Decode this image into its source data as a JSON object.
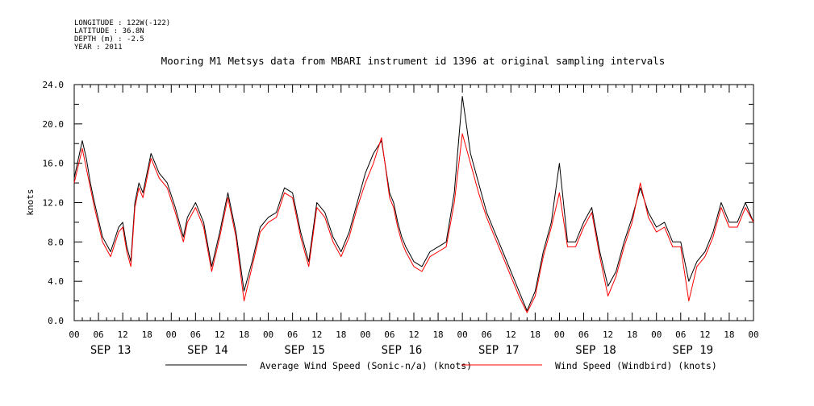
{
  "header": {
    "longitude": "LONGITUDE : 122W(-122)",
    "latitude": "LATITUDE : 36.8N",
    "depth": "DEPTH (m) : -2.5",
    "year": "YEAR : 2011"
  },
  "chart_data": {
    "type": "line",
    "title": "Mooring M1 Metsys data from MBARI instrument id 1396 at original sampling intervals",
    "xlabel": "",
    "ylabel": "knots",
    "ylim": [
      0,
      24
    ],
    "y_ticks": [
      "0.0",
      "4.0",
      "8.0",
      "12.0",
      "16.0",
      "20.0",
      "24.0"
    ],
    "x_hour_labels": [
      "00",
      "06",
      "12",
      "18",
      "00",
      "06",
      "12",
      "18",
      "00",
      "06",
      "12",
      "18",
      "00",
      "06",
      "12",
      "18",
      "00",
      "06",
      "12",
      "18",
      "00",
      "06",
      "12",
      "18",
      "00",
      "06",
      "12",
      "18",
      "00"
    ],
    "x_day_labels": [
      "SEP 13",
      "SEP 14",
      "SEP 15",
      "SEP 16",
      "SEP 17",
      "SEP 18",
      "SEP 19"
    ],
    "grid": false,
    "legend": "bottom",
    "x_units": "hours since 2011-09-13 00:00",
    "series": [
      {
        "name": "Average Wind Speed (Sonic-n/a) (knots)",
        "color": "#000000",
        "x": [
          0,
          2,
          3,
          4,
          5,
          7,
          9,
          11,
          12,
          13,
          14,
          15,
          16,
          17,
          19,
          21,
          23,
          25,
          27,
          28,
          30,
          32,
          34,
          36,
          38,
          40,
          42,
          44,
          46,
          48,
          50,
          52,
          54,
          56,
          58,
          60,
          62,
          64,
          66,
          68,
          70,
          72,
          74,
          76,
          78,
          79,
          80,
          81,
          82,
          84,
          86,
          88,
          90,
          92,
          94,
          96,
          98,
          100,
          102,
          104,
          106,
          108,
          110,
          112,
          114,
          116,
          118,
          120,
          122,
          124,
          126,
          128,
          130,
          132,
          134,
          136,
          138,
          140,
          142,
          144,
          146,
          148,
          150,
          152,
          154,
          156,
          158,
          160,
          162,
          164,
          166,
          168
        ],
        "y": [
          14.5,
          18.3,
          16.5,
          14,
          12,
          8.5,
          7,
          9.5,
          10,
          7.5,
          6,
          12,
          14,
          13,
          17,
          15,
          14,
          11.5,
          8.5,
          10.5,
          12,
          10,
          5.5,
          9,
          13,
          9,
          3,
          6,
          9.5,
          10.5,
          11,
          13.5,
          13,
          9,
          6,
          12,
          11,
          8.5,
          7,
          9,
          12,
          15,
          17,
          18.3,
          13,
          12,
          10,
          8.5,
          7.5,
          6,
          5.5,
          7,
          7.5,
          8,
          13,
          22.8,
          17,
          14,
          11,
          9,
          7,
          5,
          3,
          1,
          3,
          7,
          10,
          16,
          8,
          8,
          10,
          11.5,
          7,
          3.5,
          5,
          8,
          10.5,
          13.5,
          11,
          9.5,
          10,
          8,
          8,
          4,
          6,
          7,
          9,
          12,
          10,
          10,
          12,
          10
        ]
      },
      {
        "name": "Wind Speed (Windbird) (knots)",
        "color": "#ff0000",
        "x": [
          0,
          2,
          3,
          4,
          5,
          7,
          9,
          11,
          12,
          13,
          14,
          15,
          16,
          17,
          19,
          21,
          23,
          25,
          27,
          28,
          30,
          32,
          34,
          36,
          38,
          40,
          42,
          44,
          46,
          48,
          50,
          52,
          54,
          56,
          58,
          60,
          62,
          64,
          66,
          68,
          70,
          72,
          74,
          76,
          78,
          79,
          80,
          81,
          82,
          84,
          86,
          88,
          90,
          92,
          94,
          96,
          98,
          100,
          102,
          104,
          106,
          108,
          110,
          112,
          114,
          116,
          118,
          120,
          122,
          124,
          126,
          128,
          130,
          132,
          134,
          136,
          138,
          140,
          142,
          144,
          146,
          148,
          150,
          152,
          154,
          156,
          158,
          160,
          162,
          164,
          166,
          168
        ],
        "y": [
          14,
          17.5,
          15.5,
          13.5,
          11.5,
          8,
          6.5,
          9,
          9.5,
          7,
          5.5,
          11.5,
          13.5,
          12.5,
          16.5,
          14.5,
          13.5,
          11,
          8,
          10,
          11.5,
          9.5,
          5,
          8.5,
          12.5,
          8.5,
          2,
          5.5,
          9,
          10,
          10.5,
          13,
          12.5,
          8.5,
          5.5,
          11.5,
          10.5,
          8,
          6.5,
          8.5,
          11.5,
          14,
          16,
          18.6,
          12.5,
          11.5,
          9.5,
          8,
          7,
          5.5,
          5,
          6.5,
          7,
          7.5,
          12,
          19,
          16,
          13,
          10.5,
          8.5,
          6.5,
          4.5,
          2.5,
          0.8,
          2.5,
          6.5,
          9.5,
          13,
          7.5,
          7.5,
          9.5,
          11,
          6.5,
          2.5,
          4.5,
          7.5,
          10,
          14,
          10.5,
          9,
          9.5,
          7.5,
          7.5,
          2,
          5.5,
          6.5,
          8.5,
          11.5,
          9.5,
          9.5,
          11.5,
          10
        ]
      }
    ]
  }
}
